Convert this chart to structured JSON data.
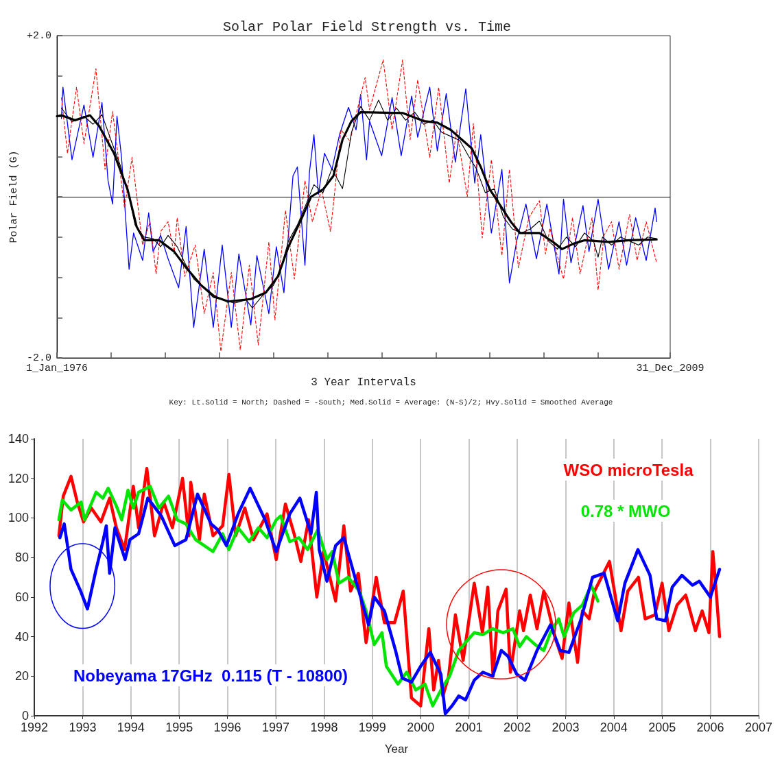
{
  "chart_data": [
    {
      "type": "line",
      "title": "Solar Polar Field Strength vs. Time",
      "xlabel": "3 Year Intervals",
      "ylabel": "Polar Field (G)",
      "annotations": [
        "Key: Lt.Solid = North; Dashed = -South; Med.Solid = Average: (N-S)/2; Hvy.Solid = Smoothed Average"
      ],
      "xlim": [
        "1976-01-01",
        "2009-12-31"
      ],
      "xticks": [
        {
          "value": "1976-01-01",
          "label": "1_Jan_1976"
        },
        {
          "value": "1979-01-01",
          "label": null
        },
        {
          "value": "1982-01-01",
          "label": null
        },
        {
          "value": "1985-01-01",
          "label": null
        },
        {
          "value": "1988-01-01",
          "label": null
        },
        {
          "value": "1991-01-01",
          "label": null
        },
        {
          "value": "1994-01-01",
          "label": null
        },
        {
          "value": "1997-01-01",
          "label": null
        },
        {
          "value": "2000-01-01",
          "label": null
        },
        {
          "value": "2003-01-01",
          "label": null
        },
        {
          "value": "2006-01-01",
          "label": null
        },
        {
          "value": "2009-12-31",
          "label": "31_Dec_2009"
        }
      ],
      "ylim": [
        -2,
        2
      ],
      "yticks": [
        {
          "value": -2,
          "label": "-2.0"
        },
        {
          "value": -1.5,
          "label": null
        },
        {
          "value": -1,
          "label": null
        },
        {
          "value": -0.5,
          "label": null
        },
        {
          "value": 0,
          "label": null
        },
        {
          "value": 0.5,
          "label": null
        },
        {
          "value": 1,
          "label": null
        },
        {
          "value": 1.5,
          "label": null
        },
        {
          "value": 2,
          "label": "+2.0"
        }
      ],
      "grid": false,
      "ref_lines": [
        {
          "axis": "y",
          "value": 0,
          "color": "#000000"
        }
      ],
      "series": [
        {
          "color": "#0000ff",
          "line_style": "solid",
          "x": [
            "1976-04",
            "1976-05",
            "1976-11",
            "1977-07",
            "1978-01",
            "1978-07",
            "1978-11",
            "1979-02",
            "1979-05",
            "1979-08",
            "1980-01",
            "1980-04",
            "1980-10",
            "1981-02",
            "1981-05",
            "1981-10",
            "1982-03",
            "1982-10",
            "1983-03",
            "1983-08",
            "1984-03",
            "1984-09",
            "1985-03",
            "1985-09",
            "1986-02",
            "1986-10",
            "1987-02",
            "1987-10",
            "1988-03",
            "1988-08",
            "1989-02",
            "1989-05",
            "1989-10",
            "1990-01",
            "1990-04",
            "1990-07",
            "1990-11",
            "1991-04",
            "1991-09",
            "1992-03",
            "1992-08",
            "1992-11",
            "1993-03",
            "1993-05",
            "1994-01",
            "1994-08",
            "1995-02",
            "1995-09",
            "1996-01",
            "1996-09",
            "1997-02",
            "1997-08",
            "1998-02",
            "1998-09",
            "1999-03",
            "1999-07",
            "2000-02",
            "2000-09",
            "2001-02",
            "2001-07",
            "2002-01",
            "2002-08",
            "2003-03",
            "2003-11",
            "2004-02",
            "2004-07",
            "2005-03",
            "2005-07",
            "2006-01",
            "2006-08",
            "2007-03",
            "2007-08",
            "2008-02",
            "2008-09",
            "2009-03",
            "2009-04"
          ],
          "values": [
            0.97,
            1.36,
            0.46,
            1.14,
            0.49,
            1.17,
            0.2,
            -0.09,
            1.0,
            0.49,
            -0.9,
            -0.45,
            -0.79,
            -0.2,
            -0.68,
            -0.48,
            -0.77,
            -1.13,
            -0.37,
            -1.62,
            -0.65,
            -1.62,
            -0.6,
            -1.62,
            -0.71,
            -1.59,
            -0.73,
            -1.45,
            -0.62,
            -1.19,
            0.26,
            0.37,
            -0.85,
            0.31,
            0.77,
            0.03,
            0.54,
            0.34,
            0.77,
            1.11,
            0.83,
            1.27,
            0.46,
            0.94,
            0.51,
            1.23,
            0.51,
            1.25,
            0.74,
            1.36,
            0.57,
            1.28,
            0.43,
            1.34,
            0.17,
            0.77,
            -0.45,
            0.34,
            -1.07,
            -0.54,
            -0.09,
            -0.77,
            -0.09,
            -0.96,
            -0.03,
            -0.82,
            -0.11,
            -0.68,
            -0.03,
            -0.9,
            -0.31,
            -0.85,
            -0.26,
            -0.79,
            -0.14,
            -0.31
          ]
        },
        {
          "color": "#ff0000",
          "line_style": "dashed",
          "x": [
            "1976-04",
            "1976-08",
            "1977-02",
            "1977-07",
            "1978-03",
            "1978-09",
            "1979-02",
            "1979-10",
            "1980-03",
            "1980-10",
            "1981-03",
            "1981-07",
            "1981-10",
            "1982-03",
            "1982-07",
            "1982-09",
            "1983-02",
            "1983-09",
            "1984-03",
            "1984-09",
            "1985-02",
            "1985-09",
            "1986-03",
            "1986-09",
            "1987-03",
            "1987-10",
            "1988-02",
            "1988-09",
            "1989-03",
            "1989-10",
            "1990-03",
            "1990-09",
            "1991-03",
            "1991-05",
            "1991-10",
            "1992-04",
            "1992-07",
            "1993-02",
            "1993-05",
            "1994-02",
            "1994-08",
            "1995-03",
            "1995-08",
            "1996-01",
            "1996-09",
            "1997-03",
            "1997-10",
            "1998-03",
            "1998-10",
            "1999-02",
            "1999-08",
            "2000-02",
            "2000-09",
            "2001-02",
            "2001-08",
            "2002-03",
            "2002-10",
            "2003-02",
            "2003-05",
            "2004-02",
            "2004-08",
            "2005-01",
            "2005-09",
            "2006-01",
            "2006-05",
            "2006-10",
            "2007-03",
            "2007-10",
            "2008-03",
            "2008-09",
            "2009-04"
          ],
          "values": [
            1.23,
            0.54,
            1.36,
            0.66,
            1.59,
            0.34,
            1.06,
            -0.14,
            0.49,
            -0.6,
            -0.31,
            -0.96,
            -0.43,
            -0.31,
            -0.71,
            -0.26,
            -0.99,
            -0.6,
            -1.45,
            -0.94,
            -1.92,
            -0.94,
            -1.9,
            -0.85,
            -1.84,
            -0.56,
            -1.53,
            -0.17,
            -1.02,
            0.2,
            -0.31,
            0.09,
            -0.43,
            -0.09,
            0.83,
            0.69,
            0.94,
            1.48,
            1.08,
            1.7,
            0.83,
            1.7,
            0.71,
            1.45,
            0.49,
            1.36,
            0.17,
            0.83,
            0,
            0.91,
            -0.51,
            0.46,
            -0.73,
            0.34,
            -0.88,
            -0.26,
            -0.05,
            -0.71,
            -0.39,
            -1.02,
            -0.26,
            -0.96,
            -0.26,
            -1.16,
            -0.48,
            -0.31,
            -0.9,
            -0.22,
            -0.79,
            -0.31,
            -0.82
          ]
        },
        {
          "color": "#000000",
          "line_style": "solid",
          "x": [
            "1976-04",
            "1976-11",
            "1977-07",
            "1978-01",
            "1978-07",
            "1979-01",
            "1979-07",
            "1980-01",
            "1980-05",
            "1980-11",
            "1981-05",
            "1981-10",
            "1982-03",
            "1982-09",
            "1983-02",
            "1983-08",
            "1984-02",
            "1984-09",
            "1985-04",
            "1985-11",
            "1986-07",
            "1986-11",
            "1987-07",
            "1988-01",
            "1988-05",
            "1988-11",
            "1989-05",
            "1989-11",
            "1990-04",
            "1990-10",
            "1991-04",
            "1991-11",
            "1992-05",
            "1992-11",
            "1993-05",
            "1993-11",
            "1994-05",
            "1994-11",
            "1995-05",
            "1995-11",
            "1996-05",
            "1996-11",
            "1997-05",
            "1997-11",
            "1998-05",
            "1998-11",
            "1999-04",
            "1999-10",
            "2000-04",
            "2000-10",
            "2001-04",
            "2001-10",
            "2002-04",
            "2002-10",
            "2003-04",
            "2003-10",
            "2004-04",
            "2004-10",
            "2005-04",
            "2005-10",
            "2006-01",
            "2006-04",
            "2006-10",
            "2007-04",
            "2007-10",
            "2008-04",
            "2008-10",
            "2009-04"
          ],
          "values": [
            1.1,
            0.93,
            1.0,
            0.9,
            1.02,
            0.7,
            0.4,
            0,
            -0.35,
            -0.5,
            -0.52,
            -0.62,
            -0.48,
            -0.62,
            -0.82,
            -1.02,
            -1.12,
            -1.25,
            -1.28,
            -1.32,
            -1.28,
            -1.38,
            -1.2,
            -1.1,
            -0.95,
            -0.55,
            -0.35,
            -0.08,
            0.15,
            0.05,
            0.35,
            0.1,
            0.8,
            1.12,
            0.95,
            1.2,
            0.95,
            1.1,
            0.95,
            1.05,
            0.9,
            0.95,
            0.8,
            0.75,
            0.7,
            0.5,
            0.35,
            0.05,
            0.1,
            -0.25,
            -0.4,
            -0.45,
            -0.4,
            -0.3,
            -0.55,
            -0.65,
            -0.5,
            -0.62,
            -0.45,
            -0.55,
            -0.75,
            -0.5,
            -0.6,
            -0.5,
            -0.55,
            -0.6,
            -0.5,
            -0.52
          ]
        },
        {
          "color": "#000000",
          "line_style": "solid",
          "x": [
            "1976-01",
            "1976-04",
            "1977-01",
            "1977-11",
            "1978-05",
            "1979-03",
            "1979-12",
            "1980-06",
            "1980-11",
            "1981-09",
            "1982-07",
            "1983-03",
            "1984-01",
            "1984-10",
            "1985-07",
            "1986-10",
            "1987-08",
            "1988-04",
            "1988-11",
            "1989-08",
            "1990-02",
            "1990-10",
            "1991-05",
            "1991-11",
            "1992-05",
            "1992-11",
            "1995-03",
            "1996-05",
            "1997-02",
            "1997-11",
            "1999-01",
            "1999-07",
            "2000-01",
            "2000-07",
            "2001-03",
            "2001-09",
            "2002-10",
            "2003-07",
            "2004-01",
            "2004-09",
            "2005-04",
            "2006-08",
            "2007-10",
            "2009-04"
          ],
          "values": [
            1.0,
            1.01,
            0.95,
            1.01,
            0.88,
            0.54,
            0.09,
            -0.37,
            -0.54,
            -0.54,
            -0.68,
            -0.88,
            -1.1,
            -1.24,
            -1.3,
            -1.27,
            -1.19,
            -0.99,
            -0.62,
            -0.26,
            0,
            0.09,
            0.26,
            0.71,
            0.94,
            1.05,
            1.04,
            0.94,
            0.92,
            0.83,
            0.6,
            0.37,
            0.09,
            -0.08,
            -0.31,
            -0.45,
            -0.45,
            -0.56,
            -0.65,
            -0.58,
            -0.54,
            -0.56,
            -0.54,
            -0.53
          ]
        }
      ]
    },
    {
      "type": "line",
      "xlabel": "Year",
      "xlim": [
        1992,
        2007
      ],
      "xticks": [
        1992,
        1993,
        1994,
        1995,
        1996,
        1997,
        1998,
        1999,
        2000,
        2001,
        2002,
        2003,
        2004,
        2005,
        2006,
        2007
      ],
      "ylim": [
        0,
        140
      ],
      "yticks": [
        0,
        20,
        40,
        60,
        80,
        100,
        120,
        140
      ],
      "grid": "x",
      "series": [
        {
          "name": "WSO microTesla",
          "color": "#ff0000",
          "x": [
            1992.51,
            1992.6,
            1992.76,
            1992.89,
            1993.02,
            1993.18,
            1993.38,
            1993.56,
            1993.7,
            1993.87,
            1994.05,
            1994.16,
            1994.33,
            1994.49,
            1994.68,
            1994.86,
            1995.07,
            1995.2,
            1995.24,
            1995.42,
            1995.52,
            1995.7,
            1995.9,
            1996.03,
            1996.17,
            1996.36,
            1996.54,
            1996.82,
            1997.01,
            1997.2,
            1997.38,
            1997.52,
            1997.68,
            1997.85,
            1997.99,
            1998.24,
            1998.41,
            1998.55,
            1998.71,
            1998.87,
            1999.08,
            1999.25,
            1999.46,
            1999.64,
            1999.81,
            2000.0,
            2000.17,
            2000.27,
            2000.37,
            2000.46,
            2000.58,
            2000.72,
            2000.88,
            2001.11,
            2001.28,
            2001.39,
            2001.5,
            2001.6,
            2001.77,
            2001.86,
            2002.05,
            2002.13,
            2002.27,
            2002.41,
            2002.55,
            2002.79,
            2002.93,
            2003.07,
            2003.25,
            2003.35,
            2003.49,
            2003.6,
            2003.91,
            2004.15,
            2004.29,
            2004.51,
            2004.65,
            2004.85,
            2005.0,
            2005.14,
            2005.31,
            2005.49,
            2005.69,
            2005.83,
            2005.97,
            2006.05,
            2006.12,
            2006.19
          ],
          "values": [
            91,
            111,
            121,
            108,
            98,
            105,
            98,
            110,
            95,
            84,
            116,
            95,
            125,
            91,
            108,
            95,
            120,
            91,
            118,
            89,
            112,
            91,
            96,
            122,
            91,
            105,
            89,
            102,
            79,
            107,
            92,
            78,
            99,
            60,
            83,
            58,
            96,
            63,
            72,
            37,
            70,
            47,
            47,
            63,
            9,
            5,
            44,
            13,
            28,
            10,
            20,
            51,
            28,
            67,
            42,
            65,
            20,
            53,
            64,
            22,
            53,
            43,
            61,
            44,
            63,
            39,
            29,
            57,
            27,
            53,
            49,
            63,
            78,
            43,
            63,
            70,
            49,
            51,
            67,
            43,
            56,
            61,
            43,
            53,
            42,
            83,
            63,
            40
          ]
        },
        {
          "name": "0.78 * MWO",
          "color": "#00e600",
          "x": [
            1992.51,
            1992.58,
            1992.76,
            1992.97,
            1993.04,
            1993.28,
            1993.42,
            1993.53,
            1993.7,
            1993.81,
            1993.94,
            1994.05,
            1994.16,
            1994.4,
            1994.58,
            1994.78,
            1994.96,
            1995.14,
            1995.34,
            1995.52,
            1995.7,
            1995.9,
            1996.03,
            1996.22,
            1996.45,
            1996.64,
            1996.82,
            1997.01,
            1997.1,
            1997.29,
            1997.48,
            1997.66,
            1997.87,
            1998.06,
            1998.17,
            1998.31,
            1998.5,
            1998.73,
            1998.87,
            1999.04,
            1999.2,
            1999.29,
            1999.53,
            1999.71,
            1999.9,
            2000.09,
            2000.25,
            2000.42,
            2000.6,
            2000.79,
            2000.93,
            2001.11,
            2001.29,
            2001.49,
            2001.71,
            2001.91,
            2002.05,
            2002.19,
            2002.37,
            2002.55,
            2002.69,
            2002.86,
            2002.97,
            2003.17,
            2003.35,
            2003.53,
            2003.67
          ],
          "values": [
            99,
            109,
            104,
            108,
            99,
            113,
            110,
            115,
            106,
            99,
            114,
            105,
            113,
            116,
            105,
            111,
            99,
            97,
            89,
            86,
            83,
            92,
            84,
            95,
            88,
            95,
            90,
            99,
            101,
            88,
            90,
            84,
            94,
            79,
            83,
            67,
            70,
            63,
            53,
            36,
            42,
            25,
            16,
            22,
            13,
            16,
            5,
            13,
            20,
            33,
            37,
            42,
            41,
            44,
            42,
            44,
            35,
            40,
            36,
            33,
            42,
            49,
            40,
            52,
            56,
            66,
            58
          ]
        },
        {
          "name": "Nobeyama 17GHz  0.115 (T - 10800)",
          "color": "#0000ff",
          "x": [
            1992.53,
            1992.62,
            1992.76,
            1992.96,
            1993.1,
            1993.28,
            1993.42,
            1993.49,
            1993.56,
            1993.67,
            1993.88,
            1993.98,
            1994.16,
            1994.35,
            1994.63,
            1994.91,
            1995.14,
            1995.38,
            1995.66,
            1995.8,
            1995.98,
            1996.22,
            1996.47,
            1996.78,
            1997.01,
            1997.29,
            1997.5,
            1997.73,
            1997.84,
            1997.9,
            1998.06,
            1998.24,
            1998.41,
            1998.64,
            1998.92,
            1999.04,
            1999.25,
            1999.48,
            1999.62,
            1999.81,
            2000.0,
            2000.2,
            2000.42,
            2000.51,
            2000.65,
            2000.79,
            2000.93,
            2001.11,
            2001.29,
            2001.49,
            2001.67,
            2001.81,
            2001.99,
            2002.16,
            2002.41,
            2002.69,
            2002.89,
            2003.07,
            2003.31,
            2003.56,
            2003.8,
            2004.08,
            2004.23,
            2004.5,
            2004.75,
            2004.89,
            2005.07,
            2005.21,
            2005.41,
            2005.63,
            2005.77,
            2006.0,
            2006.19
          ],
          "values": [
            90,
            97,
            74,
            63,
            54,
            74,
            88,
            96,
            72,
            95,
            79,
            89,
            92,
            110,
            101,
            86,
            89,
            112,
            97,
            94,
            86,
            102,
            115,
            99,
            83,
            102,
            110,
            92,
            113,
            84,
            68,
            86,
            90,
            70,
            46,
            60,
            53,
            33,
            19,
            17,
            25,
            32,
            21,
            1,
            5,
            10,
            8,
            18,
            22,
            20,
            33,
            30,
            21,
            18,
            33,
            46,
            33,
            32,
            48,
            70,
            72,
            48,
            67,
            84,
            71,
            49,
            48,
            65,
            71,
            66,
            68,
            60,
            74
          ]
        }
      ]
    }
  ]
}
